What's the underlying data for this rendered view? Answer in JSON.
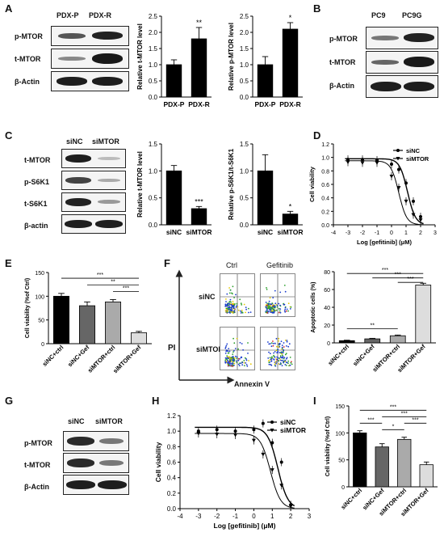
{
  "panel_labels": {
    "A": "A",
    "B": "B",
    "C": "C",
    "D": "D",
    "E": "E",
    "F": "F",
    "G": "G",
    "H": "H",
    "I": "I"
  },
  "blot_A": {
    "columns": [
      "PDX-P",
      "PDX-R"
    ],
    "rows": [
      "p-MTOR",
      "t-MTOR",
      "β-Actin"
    ]
  },
  "blot_B": {
    "columns": [
      "PC9",
      "PC9G"
    ],
    "rows": [
      "p-MTOR",
      "t-MTOR",
      "β-Actin"
    ]
  },
  "blot_C": {
    "columns": [
      "siNC",
      "siMTOR"
    ],
    "rows": [
      "t-MTOR",
      "p-S6K1",
      "t-S6K1",
      "β-actin"
    ]
  },
  "blot_G": {
    "columns": [
      "siNC",
      "siMTOR"
    ],
    "rows": [
      "p-MTOR",
      "t-MTOR",
      "β-Actin"
    ]
  },
  "flow_F": {
    "columns": [
      "Ctrl",
      "Gefitinib"
    ],
    "rows": [
      "siNC",
      "siMTOR"
    ],
    "yaxis": "PI",
    "xaxis": "Annexin V"
  },
  "chart_data": [
    {
      "id": "A1",
      "type": "bar",
      "categories": [
        "PDX-P",
        "PDX-R"
      ],
      "values": [
        1.0,
        1.8
      ],
      "errors": [
        0.15,
        0.35
      ],
      "ylabel": "Relative t-MTOR level",
      "ylim": [
        0,
        2.5
      ],
      "yticks": [
        "0.0",
        "0.5",
        "1.0",
        "1.5",
        "2.0",
        "2.5"
      ],
      "sig": [
        {
          "label": "**",
          "bar": 1
        }
      ]
    },
    {
      "id": "A2",
      "type": "bar",
      "categories": [
        "PDX-P",
        "PDX-R"
      ],
      "values": [
        1.0,
        2.1
      ],
      "errors": [
        0.25,
        0.2
      ],
      "ylabel": "Relative p-MTOR level",
      "ylim": [
        0,
        2.5
      ],
      "yticks": [
        "0.0",
        "0.5",
        "1.0",
        "1.5",
        "2.0",
        "2.5"
      ],
      "sig": [
        {
          "label": "*",
          "bar": 1
        }
      ]
    },
    {
      "id": "C1",
      "type": "bar",
      "categories": [
        "siNC",
        "siMTOR"
      ],
      "values": [
        1.0,
        0.3
      ],
      "errors": [
        0.1,
        0.04
      ],
      "ylabel": "Relative t-MTOR level",
      "ylim": [
        0,
        1.5
      ],
      "yticks": [
        "0.0",
        "0.5",
        "1.0",
        "1.5"
      ],
      "sig": [
        {
          "label": "***",
          "bar": 1
        }
      ]
    },
    {
      "id": "C2",
      "type": "bar",
      "categories": [
        "siNC",
        "siMTOR"
      ],
      "values": [
        1.0,
        0.2
      ],
      "errors": [
        0.3,
        0.05
      ],
      "ylabel": "Relative p-S6K1/t-S6K1",
      "ylim": [
        0,
        1.5
      ],
      "yticks": [
        "0.0",
        "0.5",
        "1.0",
        "1.5"
      ],
      "sig": [
        {
          "label": "*",
          "bar": 1
        }
      ]
    },
    {
      "id": "D",
      "type": "line",
      "xlabel": "Log [gefitinib] (μM)",
      "ylabel": "Cell viability",
      "xlim": [
        -4,
        3
      ],
      "ylim": [
        0,
        1.2
      ],
      "xticks": [
        "-4",
        "-3",
        "-2",
        "-1",
        "0",
        "1",
        "2",
        "3"
      ],
      "yticks": [
        "0.0",
        "0.2",
        "0.4",
        "0.6",
        "0.8",
        "1.0",
        "1.2"
      ],
      "series": [
        {
          "name": "siNC",
          "top": 0.98,
          "ic50": 1.1,
          "points": [
            [
              -3,
              0.97
            ],
            [
              -2,
              0.97
            ],
            [
              -1,
              0.96
            ],
            [
              0,
              0.9
            ],
            [
              0.5,
              0.82
            ],
            [
              1,
              0.62
            ],
            [
              1.5,
              0.35
            ],
            [
              2,
              0.12
            ]
          ]
        },
        {
          "name": "siMTOR",
          "top": 0.95,
          "ic50": 0.5,
          "points": [
            [
              -3,
              0.93
            ],
            [
              -2,
              0.92
            ],
            [
              -1,
              0.92
            ],
            [
              0,
              0.72
            ],
            [
              0.5,
              0.55
            ],
            [
              1,
              0.35
            ],
            [
              1.5,
              0.15
            ],
            [
              2,
              0.07
            ]
          ]
        }
      ]
    },
    {
      "id": "E",
      "type": "bar",
      "categories": [
        "siNC+ctrl",
        "siNC+Gef",
        "siMTOR+ctrl",
        "siMTOR+Gef"
      ],
      "values": [
        100,
        80,
        88,
        23
      ],
      "errors": [
        6,
        8,
        5,
        3
      ],
      "ylabel": "Cell viability (%of Ctrl)",
      "ylim": [
        0,
        150
      ],
      "yticks": [
        "0",
        "50",
        "100",
        "150"
      ],
      "sig": [
        {
          "label": "***",
          "from": 0,
          "to": 3,
          "level": 138
        },
        {
          "label": "**",
          "from": 1,
          "to": 3,
          "level": 124
        },
        {
          "label": "***",
          "from": 2,
          "to": 3,
          "level": 110
        }
      ]
    },
    {
      "id": "F",
      "type": "bar",
      "categories": [
        "siNC+ctrl",
        "siNC+Gef",
        "siMTOR+ctrl",
        "siMTOR+Gef"
      ],
      "values": [
        2.5,
        4.5,
        8,
        65
      ],
      "errors": [
        0.5,
        0.6,
        0.8,
        2
      ],
      "ylabel": "Apoptotic cells (%)",
      "ylim": [
        0,
        80
      ],
      "yticks": [
        "0",
        "20",
        "40",
        "60",
        "80"
      ],
      "sig": [
        {
          "label": "***",
          "from": 0,
          "to": 3,
          "level": 78
        },
        {
          "label": "***",
          "from": 1,
          "to": 3,
          "level": 73
        },
        {
          "label": "***",
          "from": 2,
          "to": 3,
          "level": 68
        },
        {
          "label": "**",
          "from": 0,
          "to": 2,
          "level": 16
        }
      ]
    },
    {
      "id": "H",
      "type": "line",
      "xlabel": "Log [gefitinib] (μM)",
      "ylabel": "Cell viability",
      "xlim": [
        -4,
        3
      ],
      "ylim": [
        0,
        1.2
      ],
      "xticks": [
        "-4",
        "-3",
        "-2",
        "-1",
        "0",
        "1",
        "2",
        "3"
      ],
      "yticks": [
        "0.0",
        "0.2",
        "0.4",
        "0.6",
        "0.8",
        "1.0",
        "1.2"
      ],
      "series": [
        {
          "name": "siNC",
          "top": 1.05,
          "ic50": 1.3,
          "points": [
            [
              -3,
              1.0
            ],
            [
              -2,
              1.02
            ],
            [
              -1,
              1.0
            ],
            [
              0,
              1.02
            ],
            [
              0.5,
              1.1
            ],
            [
              1,
              0.85
            ],
            [
              1.5,
              0.6
            ],
            [
              2,
              0.05
            ]
          ]
        },
        {
          "name": "siMTOR",
          "top": 0.97,
          "ic50": 0.9,
          "points": [
            [
              -3,
              0.97
            ],
            [
              -2,
              0.96
            ],
            [
              -1,
              0.95
            ],
            [
              0,
              0.88
            ],
            [
              0.5,
              0.7
            ],
            [
              1,
              0.5
            ],
            [
              1.5,
              0.3
            ],
            [
              2,
              0.03
            ]
          ]
        }
      ]
    },
    {
      "id": "I",
      "type": "bar",
      "categories": [
        "siNC+ctrl",
        "siNC+Gef",
        "siMTOR+ctrl",
        "siMTOR+Gef"
      ],
      "values": [
        100,
        74,
        88,
        41
      ],
      "errors": [
        4,
        6,
        4,
        5
      ],
      "ylabel": "Cell viability (%of Ctrl)",
      "ylim": [
        0,
        150
      ],
      "yticks": [
        "0",
        "50",
        "100",
        "150"
      ],
      "sig": [
        {
          "label": "***",
          "from": 0,
          "to": 3,
          "level": 142
        },
        {
          "label": "***",
          "from": 1,
          "to": 3,
          "level": 130
        },
        {
          "label": "***",
          "from": 0,
          "to": 1,
          "level": 118
        },
        {
          "label": "*",
          "from": 1,
          "to": 2,
          "level": 106
        },
        {
          "label": "***",
          "from": 2,
          "to": 3,
          "level": 118
        }
      ]
    }
  ]
}
